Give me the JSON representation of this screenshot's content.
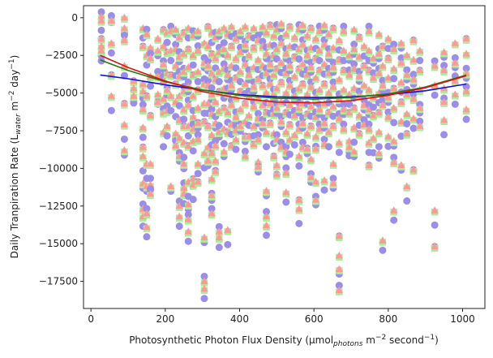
{
  "chart_data": {
    "type": "scatter",
    "title": "",
    "xlabel": {
      "main": "Photosynthetic Photon Flux Density (µmol",
      "sub": "photons",
      "after": " m",
      "sup": "−2",
      "after2": " second",
      "sup2": "−1",
      "end": ")"
    },
    "ylabel": {
      "main": "Daily Tranpiration Rate (L",
      "sub": "water",
      "after": " m",
      "sup": "−2",
      "after2": " day",
      "sup2": "−1",
      "end": ")"
    },
    "xlim": [
      -20,
      1060
    ],
    "ylim": [
      -19300,
      800
    ],
    "x_ticks": [
      0,
      200,
      400,
      600,
      800,
      1000
    ],
    "y_ticks": [
      0,
      -2500,
      -5000,
      -7500,
      -10000,
      -12500,
      -15000,
      -17500
    ],
    "y_tick_labels": [
      "0",
      "−2500",
      "−5000",
      "−7500",
      "−10000",
      "−12500",
      "−15000",
      "−17500"
    ],
    "grid": false,
    "colors": {
      "circles": "#9b8ee6",
      "squares": "#a8ee96",
      "triangles": "#ff9999",
      "blue_fit": "#1010dd",
      "green_fit": "#2a7a10",
      "red_fit": "#dd1111"
    },
    "fits": [
      {
        "color": "#1010dd",
        "x": [
          25,
          100,
          200,
          300,
          400,
          500,
          600,
          700,
          800,
          900,
          1010
        ],
        "y": [
          -3800,
          -4050,
          -4450,
          -4800,
          -5100,
          -5250,
          -5300,
          -5250,
          -5100,
          -4850,
          -4400
        ]
      },
      {
        "color": "#2a7a10",
        "x": [
          25,
          100,
          200,
          300,
          400,
          500,
          600,
          700,
          800,
          900,
          1010
        ],
        "y": [
          -2800,
          -3500,
          -4250,
          -4800,
          -5150,
          -5350,
          -5400,
          -5300,
          -5050,
          -4600,
          -3800
        ]
      },
      {
        "color": "#dd1111",
        "x": [
          25,
          100,
          200,
          300,
          400,
          500,
          600,
          700,
          800,
          900,
          1010
        ],
        "y": [
          -2500,
          -3300,
          -4200,
          -4900,
          -5350,
          -5600,
          -5650,
          -5500,
          -5150,
          -4650,
          -3850
        ]
      }
    ],
    "groups": [
      {
        "x": 28,
        "y": [
          -50,
          -300,
          -1500,
          -2000,
          -2300
        ]
      },
      {
        "x": 55,
        "y": [
          -100,
          -300,
          -1800,
          -3900,
          -5300
        ]
      },
      {
        "x": 90,
        "y": [
          -100,
          -800,
          -1600,
          -3300,
          -5800,
          -7200,
          -8900
        ]
      },
      {
        "x": 115,
        "y": [
          -4300,
          -4800,
          -5300
        ]
      },
      {
        "x": 140,
        "y": [
          -800,
          -2000,
          -4500,
          -5000,
          -6200,
          -7400,
          -8700,
          -9300,
          -11100,
          -12800,
          -13300
        ]
      },
      {
        "x": 150,
        "y": [
          -1200,
          -2600,
          -5300,
          -9800,
          -11300,
          -13100,
          -14000
        ]
      },
      {
        "x": 160,
        "y": [
          -2100,
          -2800,
          -4000,
          -6600,
          -9800,
          -11200,
          -11800
        ]
      },
      {
        "x": 180,
        "y": [
          -1500,
          -2300,
          -4000,
          -5200,
          -5700
        ]
      },
      {
        "x": 195,
        "y": [
          -900,
          -2000,
          -3200,
          -4300,
          -5500,
          -6400,
          -7700
        ]
      },
      {
        "x": 205,
        "y": [
          -1100,
          -2400,
          -3800,
          -4900,
          -6300,
          -7300
        ]
      },
      {
        "x": 215,
        "y": [
          -1000,
          -2300,
          -3900,
          -5300,
          -11300
        ]
      },
      {
        "x": 228,
        "y": [
          -900,
          -2200,
          -3300,
          -4500,
          -5700,
          -7800,
          -8600
        ]
      },
      {
        "x": 238,
        "y": [
          -1400,
          -2700,
          -4000,
          -5300,
          -6900,
          -8100,
          -9300,
          -12600,
          -13300
        ]
      },
      {
        "x": 250,
        "y": [
          -1100,
          -2500,
          -3700,
          -5000,
          -6200,
          -7300,
          -8400,
          -9800,
          -11400,
          -11800
        ]
      },
      {
        "x": 262,
        "y": [
          -800,
          -2200,
          -3400,
          -4700,
          -5900,
          -7300,
          -8600,
          -11000,
          -12500,
          -13500,
          -14300
        ]
      },
      {
        "x": 275,
        "y": [
          -1300,
          -2600,
          -3900,
          -5300,
          -6700,
          -7500,
          -8300,
          -10800,
          -11200
        ]
      },
      {
        "x": 288,
        "y": [
          -1000,
          -2300,
          -3700,
          -4900,
          -6100,
          -7100,
          -8200,
          -9800,
          -11000
        ]
      },
      {
        "x": 305,
        "y": [
          -1800,
          -3100,
          -4500,
          -5800,
          -7000,
          -9100,
          -14700,
          -17600,
          -18100
        ]
      },
      {
        "x": 315,
        "y": [
          -700,
          -2000,
          -3300,
          -4600,
          -5800,
          -7300,
          -8700,
          -9600
        ]
      },
      {
        "x": 325,
        "y": [
          -1100,
          -2500,
          -3800,
          -5200,
          -6500,
          -7900,
          -9100,
          -10800,
          -11900,
          -13100
        ]
      },
      {
        "x": 335,
        "y": [
          -1400,
          -2800,
          -4200,
          -5700,
          -7100,
          -8600,
          -9600,
          -10300
        ]
      },
      {
        "x": 345,
        "y": [
          -1000,
          -2400,
          -3700,
          -5000,
          -6300,
          -7700,
          -14300,
          -14700
        ]
      },
      {
        "x": 358,
        "y": [
          -800,
          -2200,
          -3500,
          -4800,
          -6100,
          -7500,
          -9000
        ]
      },
      {
        "x": 368,
        "y": [
          -1200,
          -2600,
          -3900,
          -5100,
          -6400,
          -7700,
          -14200
        ]
      },
      {
        "x": 378,
        "y": [
          -700,
          -2000,
          -3300,
          -4600,
          -5900,
          -7200,
          -8600
        ]
      },
      {
        "x": 390,
        "y": [
          -1500,
          -2800,
          -4100,
          -5400,
          -6700,
          -7600,
          -8200
        ]
      },
      {
        "x": 402,
        "y": [
          -1000,
          -2400,
          -3700,
          -5000,
          -6200,
          -7300
        ]
      },
      {
        "x": 415,
        "y": [
          -700,
          -1900,
          -3200,
          -4500,
          -5800,
          -7000,
          -8000,
          -9300
        ]
      },
      {
        "x": 425,
        "y": [
          -1300,
          -2600,
          -3900,
          -5300,
          -6600,
          -8000
        ]
      },
      {
        "x": 438,
        "y": [
          -800,
          -2100,
          -3400,
          -4700,
          -6000,
          -7300,
          -8500
        ]
      },
      {
        "x": 450,
        "y": [
          -1600,
          -2900,
          -4200,
          -5500,
          -6800,
          -8200,
          -9700,
          -10000
        ]
      },
      {
        "x": 462,
        "y": [
          -700,
          -2000,
          -3300,
          -4600,
          -5900,
          -7100
        ]
      },
      {
        "x": 472,
        "y": [
          -1100,
          -2500,
          -3800,
          -5100,
          -6400,
          -7700,
          -11600,
          -13300,
          -13900
        ]
      },
      {
        "x": 482,
        "y": [
          -600,
          -1900,
          -3200,
          -4500,
          -5800,
          -7100
        ]
      },
      {
        "x": 492,
        "y": [
          -1300,
          -2600,
          -3900,
          -5200,
          -6500,
          -7800,
          -9300
        ]
      },
      {
        "x": 500,
        "y": [
          -900,
          -2200,
          -3500,
          -4800,
          -6100,
          -8200,
          -9900,
          -10500
        ]
      },
      {
        "x": 512,
        "y": [
          -500,
          -1800,
          -3100,
          -4400,
          -5700,
          -7000,
          -8700
        ]
      },
      {
        "x": 525,
        "y": [
          -1200,
          -2500,
          -3800,
          -5100,
          -6400,
          -7700,
          -9000,
          -10400,
          -11700
        ]
      },
      {
        "x": 535,
        "y": [
          -700,
          -2000,
          -3300,
          -4600,
          -5900,
          -7200,
          -8200
        ]
      },
      {
        "x": 548,
        "y": [
          -1400,
          -2700,
          -4000,
          -5300,
          -6600,
          -7900
        ]
      },
      {
        "x": 560,
        "y": [
          -900,
          -2200,
          -3500,
          -4800,
          -6100,
          -7500,
          -9300,
          -12200,
          -12800
        ]
      },
      {
        "x": 570,
        "y": [
          -600,
          -1900,
          -3200,
          -4500,
          -5800,
          -7100,
          -8700
        ]
      },
      {
        "x": 582,
        "y": [
          -1300,
          -2600,
          -3900,
          -5200,
          -6500,
          -7800,
          -8800
        ]
      },
      {
        "x": 592,
        "y": [
          -800,
          -2100,
          -3400,
          -4700,
          -6000,
          -7300,
          -9500,
          -10700
        ]
      },
      {
        "x": 605,
        "y": [
          -1500,
          -2800,
          -4100,
          -5400,
          -6700,
          -8000,
          -8800,
          -11000,
          -12200
        ]
      },
      {
        "x": 615,
        "y": [
          -1000,
          -2300,
          -3600,
          -4900,
          -6200,
          -7500
        ]
      },
      {
        "x": 628,
        "y": [
          -600,
          -1900,
          -3200,
          -4500,
          -5800,
          -7100,
          -8500,
          -10900
        ]
      },
      {
        "x": 640,
        "y": [
          -1200,
          -2500,
          -3800,
          -5100,
          -6400,
          -7700
        ]
      },
      {
        "x": 652,
        "y": [
          -800,
          -2100,
          -3400,
          -4700,
          -6000,
          -7300,
          -9800,
          -11100
        ]
      },
      {
        "x": 668,
        "y": [
          -1600,
          -2900,
          -4200,
          -5500,
          -6800,
          -8400,
          -14600,
          -15900,
          -16800,
          -18200
        ]
      },
      {
        "x": 680,
        "y": [
          -1000,
          -2300,
          -3600,
          -4900,
          -6200,
          -7500
        ]
      },
      {
        "x": 695,
        "y": [
          -2600,
          -3900,
          -5200,
          -6400,
          -8300,
          -8700
        ]
      },
      {
        "x": 708,
        "y": [
          -900,
          -2200,
          -3500,
          -4800,
          -6100,
          -7400,
          -9000
        ]
      },
      {
        "x": 722,
        "y": [
          -1400,
          -2700,
          -4000,
          -5300,
          -6600,
          -7800
        ]
      },
      {
        "x": 735,
        "y": [
          -2000,
          -3300,
          -4600,
          -5900,
          -7200
        ]
      },
      {
        "x": 748,
        "y": [
          -1000,
          -2300,
          -3600,
          -4900,
          -6200,
          -7500,
          -8400,
          -9900
        ]
      },
      {
        "x": 760,
        "y": [
          -2800,
          -4100,
          -5400,
          -6600,
          -8100
        ]
      },
      {
        "x": 775,
        "y": [
          -1200,
          -2500,
          -3800,
          -5100,
          -6400,
          -7700,
          -9100
        ]
      },
      {
        "x": 785,
        "y": [
          -2000,
          -3300,
          -4600,
          -5900,
          -14900
        ]
      },
      {
        "x": 800,
        "y": [
          -1500,
          -2800,
          -4100,
          -5400,
          -6700,
          -8000
        ]
      },
      {
        "x": 815,
        "y": [
          -2200,
          -3500,
          -4800,
          -6100,
          -8300,
          -9700,
          -12900
        ]
      },
      {
        "x": 835,
        "y": [
          -1800,
          -3100,
          -4400,
          -5700,
          -7000,
          -9900
        ]
      },
      {
        "x": 850,
        "y": [
          -2600,
          -3900,
          -5200,
          -6500,
          -7800,
          -11300
        ]
      },
      {
        "x": 868,
        "y": [
          -1600,
          -2900,
          -4200,
          -5500,
          -6800,
          -10200
        ]
      },
      {
        "x": 885,
        "y": [
          -2300,
          -3600,
          -4900,
          -6100,
          -7300
        ]
      },
      {
        "x": 925,
        "y": [
          -3300,
          -4600,
          -15300,
          -12900
        ]
      },
      {
        "x": 950,
        "y": [
          -2400,
          -3600,
          -4800,
          -5700,
          -6900
        ]
      },
      {
        "x": 980,
        "y": [
          -1800,
          -3100,
          -4300,
          -5200
        ]
      },
      {
        "x": 1010,
        "y": [
          -1500,
          -2500,
          -3800,
          -5000,
          -6200
        ]
      }
    ]
  }
}
